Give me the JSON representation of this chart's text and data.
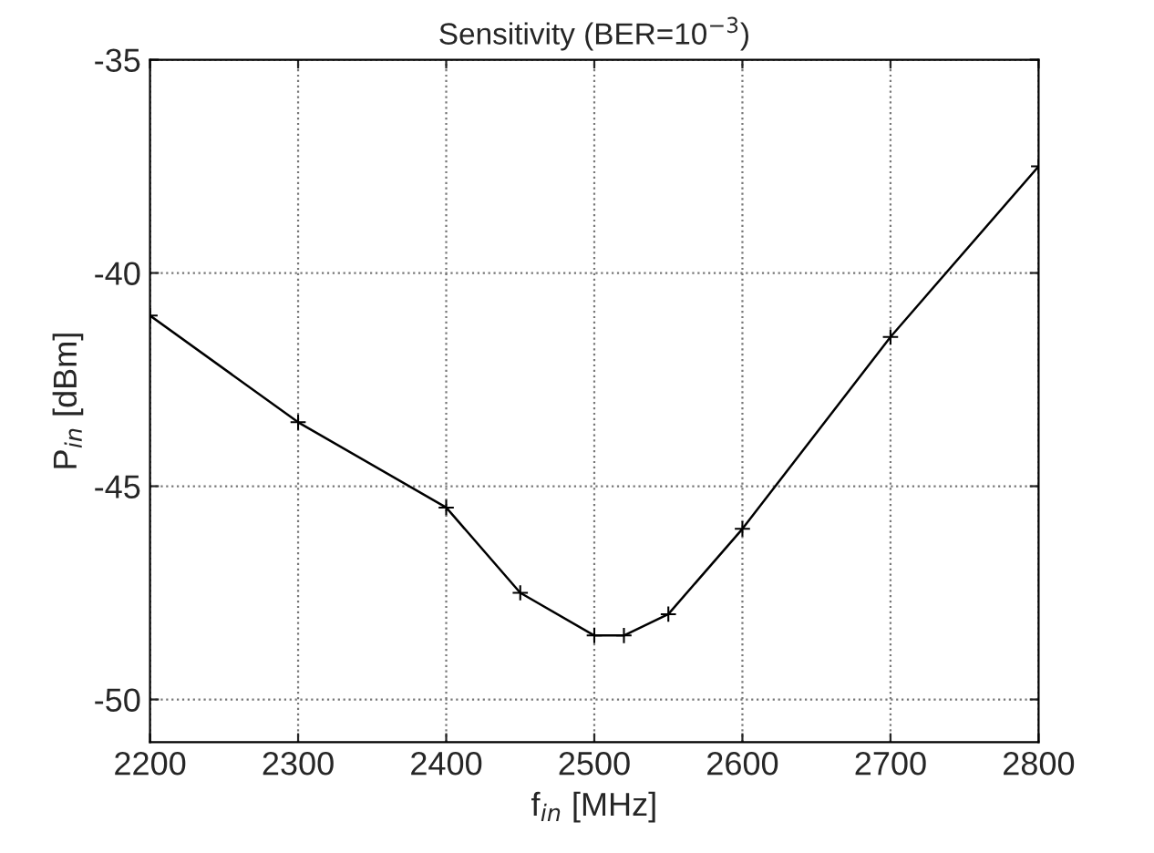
{
  "chart_data": {
    "type": "line",
    "title": "Sensitivity (BER=10$^{−3}$)",
    "xlabel": "f$_{in}$ [MHz]",
    "ylabel": "P$_{in}$ [dBm]",
    "x": [
      2200,
      2300,
      2400,
      2450,
      2500,
      2520,
      2550,
      2600,
      2700,
      2800
    ],
    "series": [
      {
        "color": "#000000",
        "values": [
          -41,
          -43.5,
          -45.5,
          -47.5,
          -48.5,
          -48.5,
          -48,
          -46,
          -41.5,
          -37.5
        ]
      }
    ],
    "xlim": [
      2200,
      2800
    ],
    "xticks": [
      2200,
      2300,
      2400,
      2500,
      2600,
      2700,
      2800
    ],
    "ylim": [
      -51,
      -35
    ],
    "yticks": [
      -50,
      -45,
      -40,
      -35
    ],
    "grid": true,
    "marker": "cross",
    "line_style": "solid"
  }
}
